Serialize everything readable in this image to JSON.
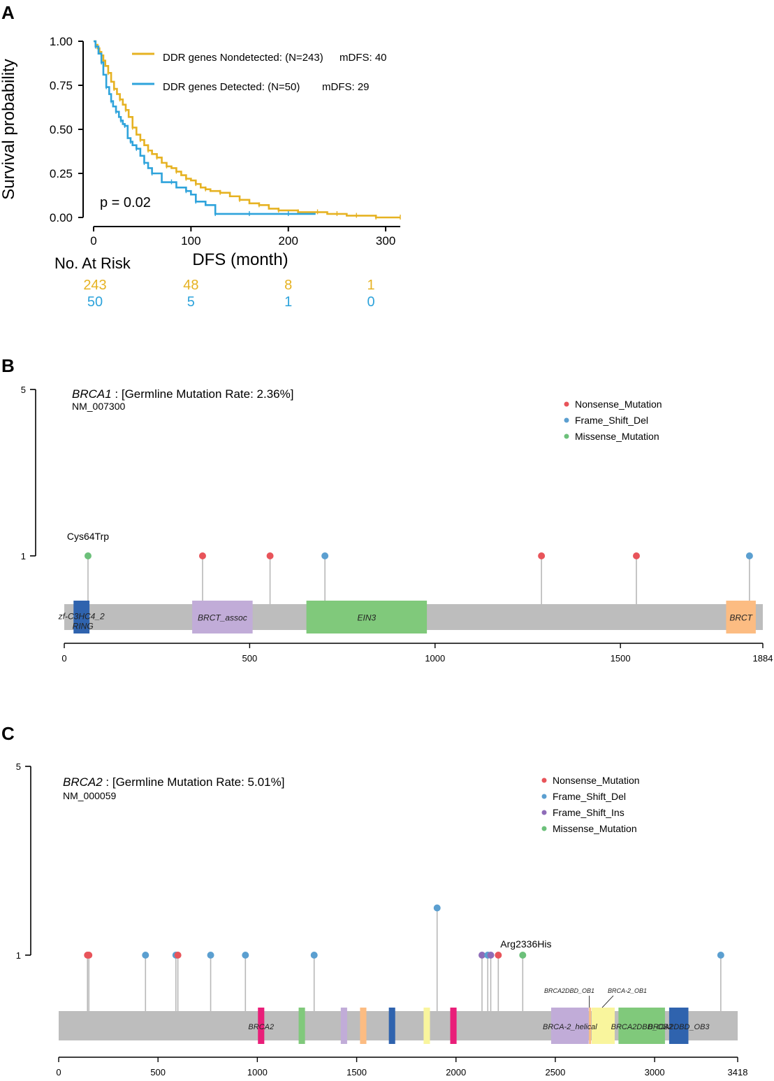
{
  "colors": {
    "nondetected": "#E6B222",
    "detected": "#2EA3DB",
    "nonsense": "#E8545A",
    "frameshift_del": "#5B9FD0",
    "frameshift_ins": "#8E6CB8",
    "missense": "#6CC07A",
    "backbone": "#BDBDBD",
    "lollipop_stem": "#B8B8B8"
  },
  "chart_data": [
    {
      "panel": "A",
      "type": "line",
      "title": "",
      "xlabel": "DFS (month)",
      "ylabel": "Survival probability",
      "xlim": [
        0,
        315
      ],
      "ylim": [
        0,
        1
      ],
      "xticks": [
        "0",
        "100",
        "200",
        "300"
      ],
      "yticks": [
        "0.00",
        "0.25",
        "0.50",
        "0.75",
        "1.00"
      ],
      "xtick_values": [
        0,
        100,
        200,
        300
      ],
      "ytick_values": [
        0,
        0.25,
        0.5,
        0.75,
        1.0
      ],
      "pvalue": "p = 0.02",
      "series": [
        {
          "name": "DDR genes Nondetected",
          "legend_label": "DDR genes Nondetected: (N=243)",
          "median_label": "mDFS: 40",
          "color_key": "nondetected",
          "x": [
            0,
            2,
            4,
            6,
            8,
            10,
            12,
            15,
            18,
            21,
            24,
            27,
            30,
            33,
            36,
            40,
            44,
            48,
            52,
            56,
            60,
            65,
            70,
            75,
            80,
            85,
            90,
            95,
            100,
            105,
            110,
            115,
            120,
            130,
            140,
            150,
            160,
            170,
            180,
            190,
            200,
            210,
            220,
            230,
            240,
            250,
            260,
            270,
            280,
            290,
            300,
            315
          ],
          "y": [
            1.0,
            0.98,
            0.96,
            0.94,
            0.92,
            0.89,
            0.86,
            0.82,
            0.77,
            0.73,
            0.7,
            0.67,
            0.64,
            0.61,
            0.57,
            0.51,
            0.47,
            0.44,
            0.41,
            0.38,
            0.36,
            0.34,
            0.31,
            0.29,
            0.28,
            0.26,
            0.24,
            0.22,
            0.21,
            0.19,
            0.17,
            0.16,
            0.15,
            0.14,
            0.12,
            0.1,
            0.08,
            0.07,
            0.05,
            0.04,
            0.04,
            0.03,
            0.03,
            0.03,
            0.02,
            0.02,
            0.01,
            0.01,
            0.01,
            0.0,
            0.0,
            0.0
          ]
        },
        {
          "name": "DDR genes Detected",
          "legend_label": "DDR genes Detected: (N=50)",
          "median_label": "mDFS: 29",
          "color_key": "detected",
          "x": [
            0,
            2,
            5,
            8,
            10,
            13,
            16,
            18,
            20,
            23,
            26,
            28,
            30,
            32,
            35,
            38,
            40,
            44,
            48,
            52,
            56,
            60,
            70,
            80,
            85,
            95,
            100,
            105,
            115,
            125,
            140,
            160,
            180,
            200,
            228
          ],
          "y": [
            1.0,
            0.97,
            0.93,
            0.88,
            0.81,
            0.74,
            0.7,
            0.66,
            0.63,
            0.6,
            0.57,
            0.55,
            0.53,
            0.52,
            0.45,
            0.43,
            0.41,
            0.39,
            0.35,
            0.31,
            0.28,
            0.25,
            0.2,
            0.2,
            0.17,
            0.15,
            0.13,
            0.09,
            0.07,
            0.02,
            0.02,
            0.02,
            0.02,
            0.02,
            0.02
          ]
        }
      ],
      "risk_table": {
        "title": "No. At Risk",
        "times": [
          0,
          100,
          200,
          300
        ],
        "rows": [
          {
            "color_key": "nondetected",
            "values": [
              "243",
              "48",
              "8",
              "1"
            ]
          },
          {
            "color_key": "detected",
            "values": [
              "50",
              "5",
              "1",
              "0"
            ]
          }
        ]
      }
    },
    {
      "panel": "B",
      "type": "lollipop",
      "gene": "BRCA1",
      "rate_label": " : [Germline Mutation Rate: 2.36%]",
      "transcript": "NM_007300",
      "protein_length": 1884,
      "xlim": [
        0,
        1884
      ],
      "xticks": [
        "0",
        "500",
        "1000",
        "1500",
        "1884"
      ],
      "xtick_values": [
        0,
        500,
        1000,
        1500,
        1884
      ],
      "ylim": [
        0,
        5
      ],
      "yticks": [
        "1",
        "5"
      ],
      "legend": [
        {
          "label": "Nonsense_Mutation",
          "color_key": "nonsense"
        },
        {
          "label": "Frame_Shift_Del",
          "color_key": "frameshift_del"
        },
        {
          "label": "Missense_Mutation",
          "color_key": "missense"
        }
      ],
      "domains": [
        {
          "name": "zf-C3HC4_2",
          "name2": "RING",
          "start": 25,
          "end": 68,
          "color": "#2F63AE"
        },
        {
          "name": "BRCT_assoc",
          "start": 345,
          "end": 508,
          "color": "#C1ACD8"
        },
        {
          "name": "EIN3",
          "start": 653,
          "end": 978,
          "color": "#80C97B"
        },
        {
          "name": "BRCT",
          "start": 1785,
          "end": 1865,
          "color": "#FCBC82"
        }
      ],
      "mutations": [
        {
          "pos": 64,
          "count": 1,
          "type": "missense",
          "label": "Cys64Trp"
        },
        {
          "pos": 373,
          "count": 1,
          "type": "nonsense"
        },
        {
          "pos": 555,
          "count": 1,
          "type": "nonsense"
        },
        {
          "pos": 703,
          "count": 1,
          "type": "frameshift_del"
        },
        {
          "pos": 1287,
          "count": 1,
          "type": "nonsense"
        },
        {
          "pos": 1543,
          "count": 1,
          "type": "nonsense"
        },
        {
          "pos": 1848,
          "count": 1,
          "type": "frameshift_del"
        }
      ]
    },
    {
      "panel": "C",
      "type": "lollipop",
      "gene": "BRCA2",
      "rate_label": " : [Germline Mutation Rate: 5.01%]",
      "transcript": "NM_000059",
      "protein_length": 3418,
      "xlim": [
        0,
        3418
      ],
      "xticks": [
        "0",
        "500",
        "1000",
        "1500",
        "2000",
        "2500",
        "3000",
        "3418"
      ],
      "xtick_values": [
        0,
        500,
        1000,
        1500,
        2000,
        2500,
        3000,
        3418
      ],
      "ylim": [
        0,
        5
      ],
      "yticks": [
        "1",
        "5"
      ],
      "legend": [
        {
          "label": "Nonsense_Mutation",
          "color_key": "nonsense"
        },
        {
          "label": "Frame_Shift_Del",
          "color_key": "frameshift_del"
        },
        {
          "label": "Frame_Shift_Ins",
          "color_key": "frameshift_ins"
        },
        {
          "label": "Missense_Mutation",
          "color_key": "missense"
        }
      ],
      "domains": [
        {
          "name": "BRCA2",
          "start": 1003,
          "end": 1035,
          "color": "#E91E79",
          "label_start": 985
        },
        {
          "name": "",
          "start": 1208,
          "end": 1240,
          "color": "#80C97B"
        },
        {
          "name": "",
          "start": 1420,
          "end": 1452,
          "color": "#C1ACD8"
        },
        {
          "name": "",
          "start": 1517,
          "end": 1549,
          "color": "#FCBC82"
        },
        {
          "name": "",
          "start": 1662,
          "end": 1694,
          "color": "#2F63AE"
        },
        {
          "name": "",
          "start": 1837,
          "end": 1869,
          "color": "#F9F59D"
        },
        {
          "name": "",
          "start": 1971,
          "end": 2003,
          "color": "#E91E79"
        },
        {
          "name": "BRCA-2_helical",
          "start": 2479,
          "end": 2668,
          "color": "#C1ACD8"
        },
        {
          "name": "",
          "start": 2670,
          "end": 2680,
          "color": "#FCBC82"
        },
        {
          "name": "BRCA2DBD_OB1",
          "start": 2670,
          "end": 2680,
          "color": "#FCBC82",
          "small": true
        },
        {
          "name": "BRCA-2_OB1",
          "start": 2683,
          "end": 2799,
          "color": "#F9F59D",
          "small": true
        },
        {
          "name": "BRCA2DBD_OB2",
          "start": 2818,
          "end": 3052,
          "color": "#80C97B"
        },
        {
          "name": "BRCA2DBD_OB3",
          "start": 3052,
          "end": 3190,
          "color": "#2F63AE",
          "fill_start": 3073,
          "fill_end": 3170
        }
      ],
      "mutations": [
        {
          "pos": 145,
          "count": 1,
          "type": "nonsense"
        },
        {
          "pos": 152,
          "count": 1,
          "type": "nonsense"
        },
        {
          "pos": 437,
          "count": 1,
          "type": "frameshift_del"
        },
        {
          "pos": 590,
          "count": 1,
          "type": "frameshift_del"
        },
        {
          "pos": 600,
          "count": 1,
          "type": "nonsense"
        },
        {
          "pos": 765,
          "count": 1,
          "type": "frameshift_del"
        },
        {
          "pos": 940,
          "count": 1,
          "type": "frameshift_del"
        },
        {
          "pos": 1286,
          "count": 1,
          "type": "frameshift_del"
        },
        {
          "pos": 1905,
          "count": 2,
          "type": "frameshift_del"
        },
        {
          "pos": 2131,
          "count": 1,
          "type": "frameshift_ins"
        },
        {
          "pos": 2160,
          "count": 1,
          "type": "frameshift_del"
        },
        {
          "pos": 2175,
          "count": 1,
          "type": "frameshift_ins"
        },
        {
          "pos": 2213,
          "count": 1,
          "type": "nonsense"
        },
        {
          "pos": 2336,
          "count": 1,
          "type": "missense",
          "label": "Arg2336His"
        },
        {
          "pos": 3333,
          "count": 1,
          "type": "frameshift_del"
        }
      ]
    }
  ],
  "panel_labels": [
    "A",
    "B",
    "C"
  ]
}
